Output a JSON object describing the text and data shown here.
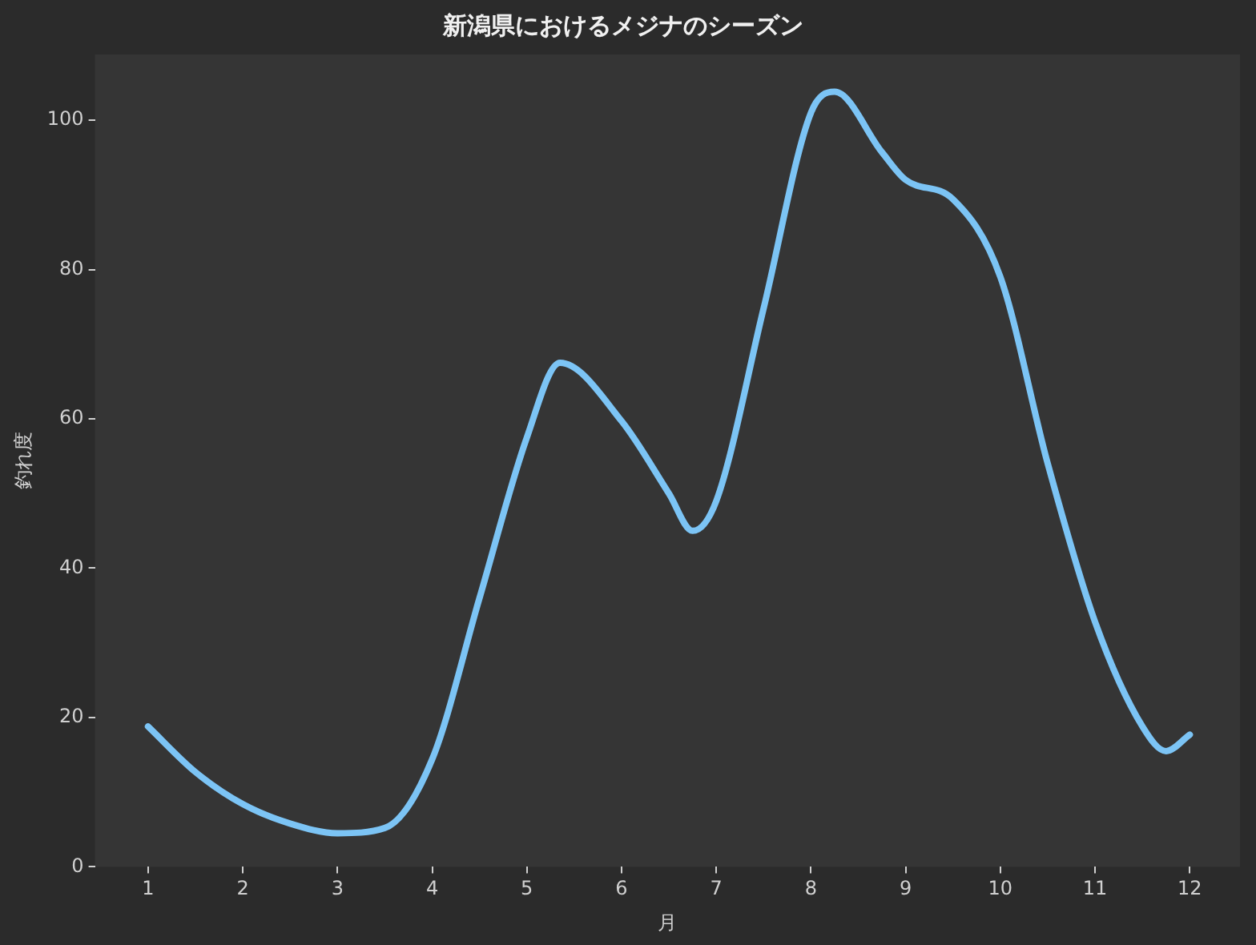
{
  "chart_data": {
    "type": "line",
    "title": "新潟県におけるメジナのシーズン",
    "xlabel": "月",
    "ylabel": "釣れ度",
    "x": [
      1,
      1.5,
      2,
      2.5,
      3,
      3.5,
      4,
      4.5,
      5,
      5.35,
      6,
      6.5,
      6.75,
      7,
      7.5,
      8,
      8.25,
      8.75,
      9,
      9.5,
      10,
      10.5,
      11,
      11.5,
      11.75,
      12
    ],
    "series": [
      {
        "color": "#7cc4f5",
        "values": [
          18.8,
          12.7,
          8.4,
          5.8,
          4.5,
          5.2,
          14.4,
          36,
          57.5,
          67.5,
          59.7,
          50,
          45,
          49,
          74.8,
          101,
          103.8,
          95.7,
          92,
          89.4,
          79,
          54,
          32.8,
          18.8,
          15.5,
          17.7
        ]
      }
    ],
    "xlim": [
      0.44,
      12.53
    ],
    "xticks": [
      1,
      2,
      3,
      4,
      5,
      6,
      7,
      8,
      9,
      10,
      11,
      12
    ],
    "ylim": [
      0,
      108.8
    ],
    "yticks": [
      0,
      20,
      40,
      60,
      80,
      100
    ],
    "grid": false,
    "legend": false,
    "marker": "none",
    "line_style": "solid"
  }
}
